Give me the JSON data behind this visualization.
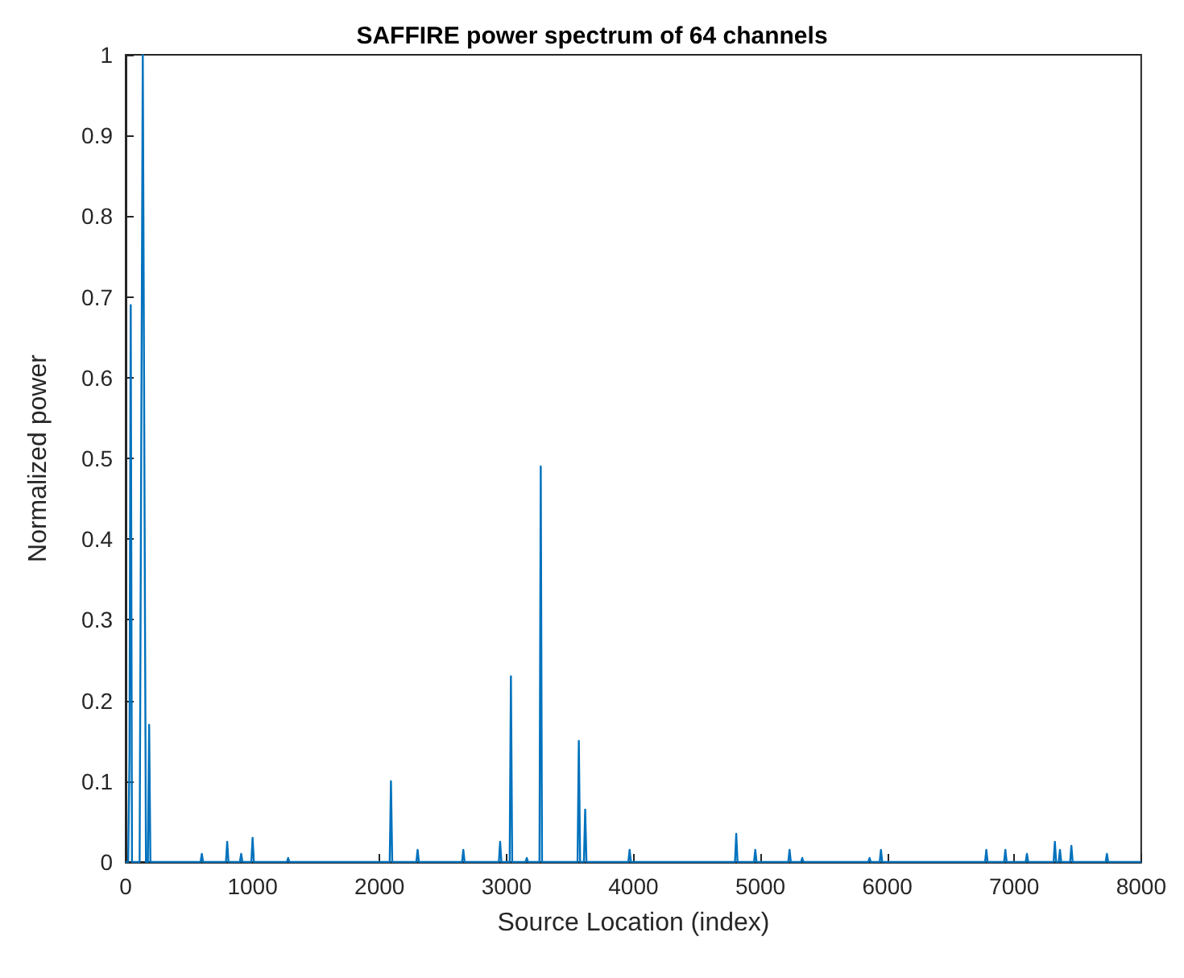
{
  "chart_data": {
    "type": "line",
    "title": "SAFFIRE power spectrum of 64 channels",
    "xlabel": "Source Location (index)",
    "ylabel": "Normalized power",
    "series": [
      {
        "color": "#0072bd",
        "x": [
          0,
          20,
          30,
          40,
          50,
          70,
          110,
          135,
          160,
          175,
          185,
          195,
          590,
          600,
          610,
          790,
          800,
          810,
          900,
          910,
          920,
          990,
          1000,
          1010,
          1270,
          1280,
          1290,
          2080,
          2090,
          2100,
          2290,
          2300,
          2310,
          2650,
          2660,
          2670,
          2940,
          2950,
          2960,
          3025,
          3035,
          3045,
          3150,
          3160,
          3170,
          3260,
          3270,
          3280,
          3560,
          3570,
          3580,
          3610,
          3620,
          3630,
          3960,
          3970,
          3980,
          4800,
          4810,
          4820,
          4950,
          4960,
          4970,
          5220,
          5230,
          5240,
          5320,
          5330,
          5340,
          5850,
          5860,
          5870,
          5940,
          5950,
          5960,
          6770,
          6780,
          6790,
          6920,
          6930,
          6940,
          7090,
          7100,
          7110,
          7310,
          7320,
          7330,
          7350,
          7360,
          7370,
          7440,
          7450,
          7460,
          7720,
          7730,
          7740,
          8000
        ],
        "values": [
          0,
          0,
          0.13,
          0.69,
          0,
          0,
          0,
          1,
          0,
          0,
          0.17,
          0,
          0,
          0.01,
          0,
          0,
          0.025,
          0,
          0,
          0.01,
          0,
          0,
          0.03,
          0,
          0,
          0.005,
          0,
          0,
          0.1,
          0,
          0,
          0.015,
          0,
          0,
          0.015,
          0,
          0,
          0.025,
          0,
          0,
          0.23,
          0,
          0,
          0.005,
          0,
          0,
          0.49,
          0,
          0,
          0.15,
          0,
          0,
          0.065,
          0,
          0,
          0.015,
          0,
          0,
          0.035,
          0,
          0,
          0.015,
          0,
          0,
          0.015,
          0,
          0,
          0.005,
          0,
          0,
          0.005,
          0,
          0,
          0.015,
          0,
          0,
          0.015,
          0,
          0,
          0.015,
          0,
          0,
          0.01,
          0,
          0,
          0.025,
          0,
          0,
          0.015,
          0,
          0,
          0.02,
          0,
          0,
          0.01,
          0,
          0
        ]
      }
    ],
    "xlim": [
      0,
      8000
    ],
    "xticks": [
      0,
      1000,
      2000,
      3000,
      4000,
      5000,
      6000,
      7000,
      8000
    ],
    "ylim": [
      0,
      1
    ],
    "yticks": [
      0,
      0.1,
      0.2,
      0.3,
      0.4,
      0.5,
      0.6,
      0.7,
      0.8,
      0.9,
      1
    ],
    "grid": false,
    "marker": "none",
    "line_style": "solid"
  }
}
